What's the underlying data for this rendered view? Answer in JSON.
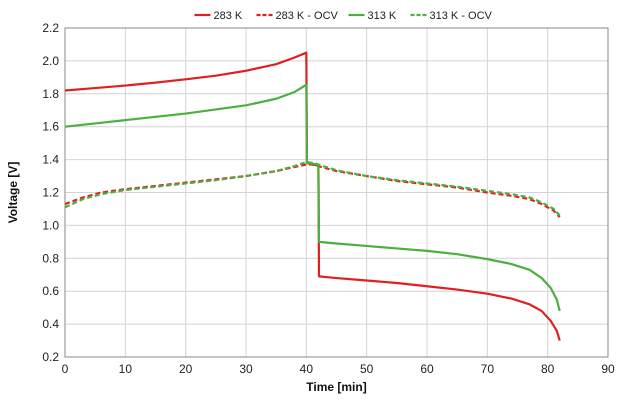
{
  "chart_data": {
    "type": "line",
    "title": "",
    "xlabel": "Time [min]",
    "ylabel": "Voltage [V]",
    "xlim": [
      0,
      90
    ],
    "ylim": [
      0.2,
      2.2
    ],
    "xticks": [
      0,
      10,
      20,
      30,
      40,
      50,
      60,
      70,
      80,
      90
    ],
    "yticks": [
      "0.2",
      "0.4",
      "0.6",
      "0.8",
      "1.0",
      "1.2",
      "1.4",
      "1.6",
      "1.8",
      "2.0",
      "2.2"
    ],
    "grid": true,
    "legend_position": "top",
    "series": [
      {
        "name": "283 K",
        "color": "#e02020",
        "dash": "solid",
        "points": [
          [
            0,
            1.82
          ],
          [
            5,
            1.835
          ],
          [
            10,
            1.85
          ],
          [
            15,
            1.868
          ],
          [
            20,
            1.888
          ],
          [
            25,
            1.91
          ],
          [
            30,
            1.94
          ],
          [
            35,
            1.98
          ],
          [
            38,
            2.02
          ],
          [
            40,
            2.05
          ],
          [
            40.1,
            1.38
          ],
          [
            41,
            1.37
          ],
          [
            42,
            1.365
          ],
          [
            42.1,
            0.69
          ],
          [
            45,
            0.68
          ],
          [
            50,
            0.665
          ],
          [
            55,
            0.65
          ],
          [
            60,
            0.63
          ],
          [
            65,
            0.61
          ],
          [
            70,
            0.585
          ],
          [
            74,
            0.555
          ],
          [
            77,
            0.52
          ],
          [
            79,
            0.48
          ],
          [
            80.5,
            0.42
          ],
          [
            81.5,
            0.36
          ],
          [
            82,
            0.3
          ]
        ]
      },
      {
        "name": "283 K - OCV",
        "color": "#e02020",
        "dash": "dashed",
        "points": [
          [
            0,
            1.13
          ],
          [
            3,
            1.17
          ],
          [
            6,
            1.2
          ],
          [
            10,
            1.22
          ],
          [
            15,
            1.24
          ],
          [
            20,
            1.26
          ],
          [
            25,
            1.28
          ],
          [
            30,
            1.3
          ],
          [
            35,
            1.33
          ],
          [
            38,
            1.355
          ],
          [
            40,
            1.37
          ],
          [
            41,
            1.37
          ],
          [
            42,
            1.36
          ],
          [
            45,
            1.33
          ],
          [
            50,
            1.3
          ],
          [
            55,
            1.27
          ],
          [
            60,
            1.25
          ],
          [
            65,
            1.23
          ],
          [
            70,
            1.2
          ],
          [
            74,
            1.18
          ],
          [
            77,
            1.16
          ],
          [
            79,
            1.13
          ],
          [
            81,
            1.09
          ],
          [
            82,
            1.05
          ]
        ]
      },
      {
        "name": "313 K",
        "color": "#4caf40",
        "dash": "solid",
        "points": [
          [
            0,
            1.6
          ],
          [
            5,
            1.62
          ],
          [
            10,
            1.64
          ],
          [
            15,
            1.66
          ],
          [
            20,
            1.68
          ],
          [
            25,
            1.705
          ],
          [
            30,
            1.73
          ],
          [
            35,
            1.77
          ],
          [
            38,
            1.81
          ],
          [
            40,
            1.855
          ],
          [
            40.1,
            1.38
          ],
          [
            41,
            1.375
          ],
          [
            42,
            1.37
          ],
          [
            42.1,
            0.9
          ],
          [
            45,
            0.89
          ],
          [
            50,
            0.875
          ],
          [
            55,
            0.86
          ],
          [
            60,
            0.845
          ],
          [
            65,
            0.825
          ],
          [
            70,
            0.795
          ],
          [
            74,
            0.765
          ],
          [
            77,
            0.73
          ],
          [
            79,
            0.68
          ],
          [
            80.5,
            0.62
          ],
          [
            81.5,
            0.55
          ],
          [
            82,
            0.48
          ]
        ]
      },
      {
        "name": "313 K - OCV",
        "color": "#4caf40",
        "dash": "dashed",
        "points": [
          [
            0,
            1.11
          ],
          [
            3,
            1.16
          ],
          [
            6,
            1.19
          ],
          [
            10,
            1.215
          ],
          [
            15,
            1.235
          ],
          [
            20,
            1.255
          ],
          [
            25,
            1.275
          ],
          [
            30,
            1.3
          ],
          [
            35,
            1.33
          ],
          [
            38,
            1.36
          ],
          [
            40,
            1.385
          ],
          [
            41,
            1.38
          ],
          [
            42,
            1.37
          ],
          [
            45,
            1.335
          ],
          [
            50,
            1.3
          ],
          [
            55,
            1.275
          ],
          [
            60,
            1.255
          ],
          [
            65,
            1.235
          ],
          [
            70,
            1.21
          ],
          [
            74,
            1.19
          ],
          [
            77,
            1.17
          ],
          [
            79,
            1.14
          ],
          [
            81,
            1.1
          ],
          [
            82,
            1.06
          ]
        ]
      }
    ]
  }
}
